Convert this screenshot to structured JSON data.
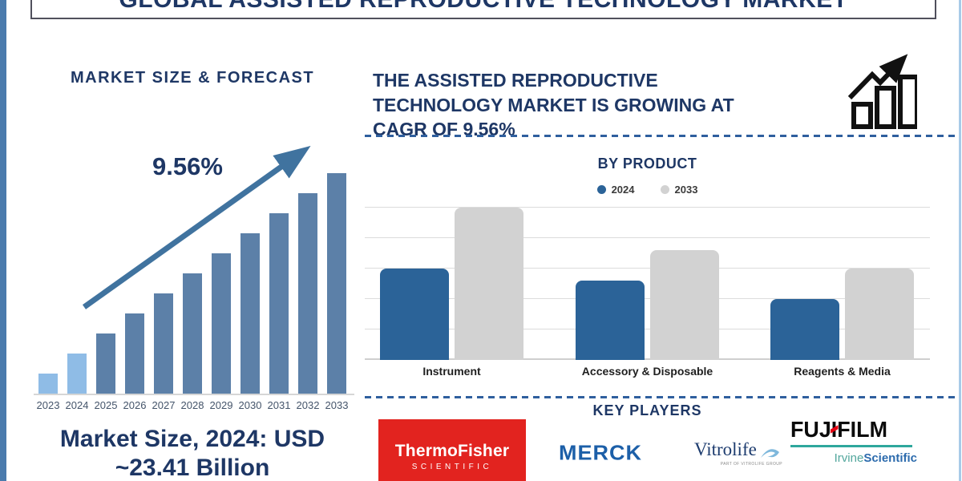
{
  "title": "GLOBAL ASSISTED REPRODUCTIVE TECHNOLOGY MARKET",
  "left_panel": {
    "heading": "MARKET SIZE & FORECAST",
    "growth_label": "9.56%",
    "caption_line1": "Market Size, 2024: USD",
    "caption_line2": "~23.41 Billion"
  },
  "right_panel": {
    "headline_lines": [
      "THE ASSISTED REPRODUCTIVE",
      "TECHNOLOGY MARKET IS GROWING AT",
      "CAGR OF 9.56%"
    ],
    "key_players_title": "KEY PLAYERS"
  },
  "chart_data": [
    {
      "id": "market_size_forecast",
      "type": "bar",
      "title": "MARKET SIZE & FORECAST",
      "categories": [
        "2023",
        "2024",
        "2025",
        "2026",
        "2027",
        "2028",
        "2029",
        "2030",
        "2031",
        "2032",
        "2033"
      ],
      "values": [
        1,
        2,
        3,
        4,
        5,
        6,
        7,
        8,
        9,
        10,
        11
      ],
      "values_note": "stylized relative bar heights; no y-axis shown",
      "annotation": "9.56%",
      "labeled_fact": "Market Size, 2024: USD ~23.41 Billion",
      "cagr_percent": 9.56,
      "highlight_years": [
        "2023",
        "2024"
      ],
      "xlabel": "",
      "ylabel": "",
      "grid": false,
      "legend": false
    },
    {
      "id": "by_product",
      "type": "bar",
      "title": "BY PRODUCT",
      "categories": [
        "Instrument",
        "Accessory & Disposable",
        "Reagents & Media"
      ],
      "series": [
        {
          "name": "2024",
          "color": "#2B6398",
          "values": [
            3.0,
            2.6,
            2.0
          ]
        },
        {
          "name": "2033",
          "color": "#D2D2D2",
          "values": [
            5.0,
            3.6,
            3.0
          ]
        }
      ],
      "values_note": "estimated in gridline units; no y-axis labels shown",
      "ylim": [
        0,
        5
      ],
      "grid": true,
      "legend_position": "top"
    }
  ],
  "key_players": {
    "thermo": {
      "line1": "ThermoFisher",
      "line2": "SCIENTIFIC"
    },
    "merck": {
      "text": "MERCK"
    },
    "vitrolife": {
      "text": "Vitrolife",
      "subtext": "PART OF VITROLIFE GROUP"
    },
    "fujifilm": {
      "pre": "FUJ",
      "i": "I",
      "post": "FILM",
      "irvine": "Irvine",
      "scientific": "Scientific"
    }
  },
  "colors": {
    "navy": "#1E3765",
    "steel_blue": "#5C80A8",
    "light_blue": "#8FBCE6",
    "axis_label": "#44546A",
    "gridline": "#DCDCDC",
    "dash_blue": "#2F5F9E",
    "arrow_blue": "#40739F",
    "stripe_blue": "#4B7BAD",
    "edge_blue": "#A8CBE8",
    "title_border": "#50505C",
    "label_dark": "#1F1F1F",
    "bar_2024": "#2B6398",
    "bar_2033": "#D2D2D2",
    "thermo_red": "#E2231F",
    "merck_blue": "#1C5FA8",
    "vitrolife_navy": "#1C3B6E",
    "vitrolife_swoosh": "#7FB8DC",
    "fuji_black": "#0B0B0B",
    "fuji_red": "#E60012",
    "fuji_teal": "#2EA79C",
    "irvine_teal": "#53A79D",
    "scientific_blue": "#2C6BAD"
  }
}
